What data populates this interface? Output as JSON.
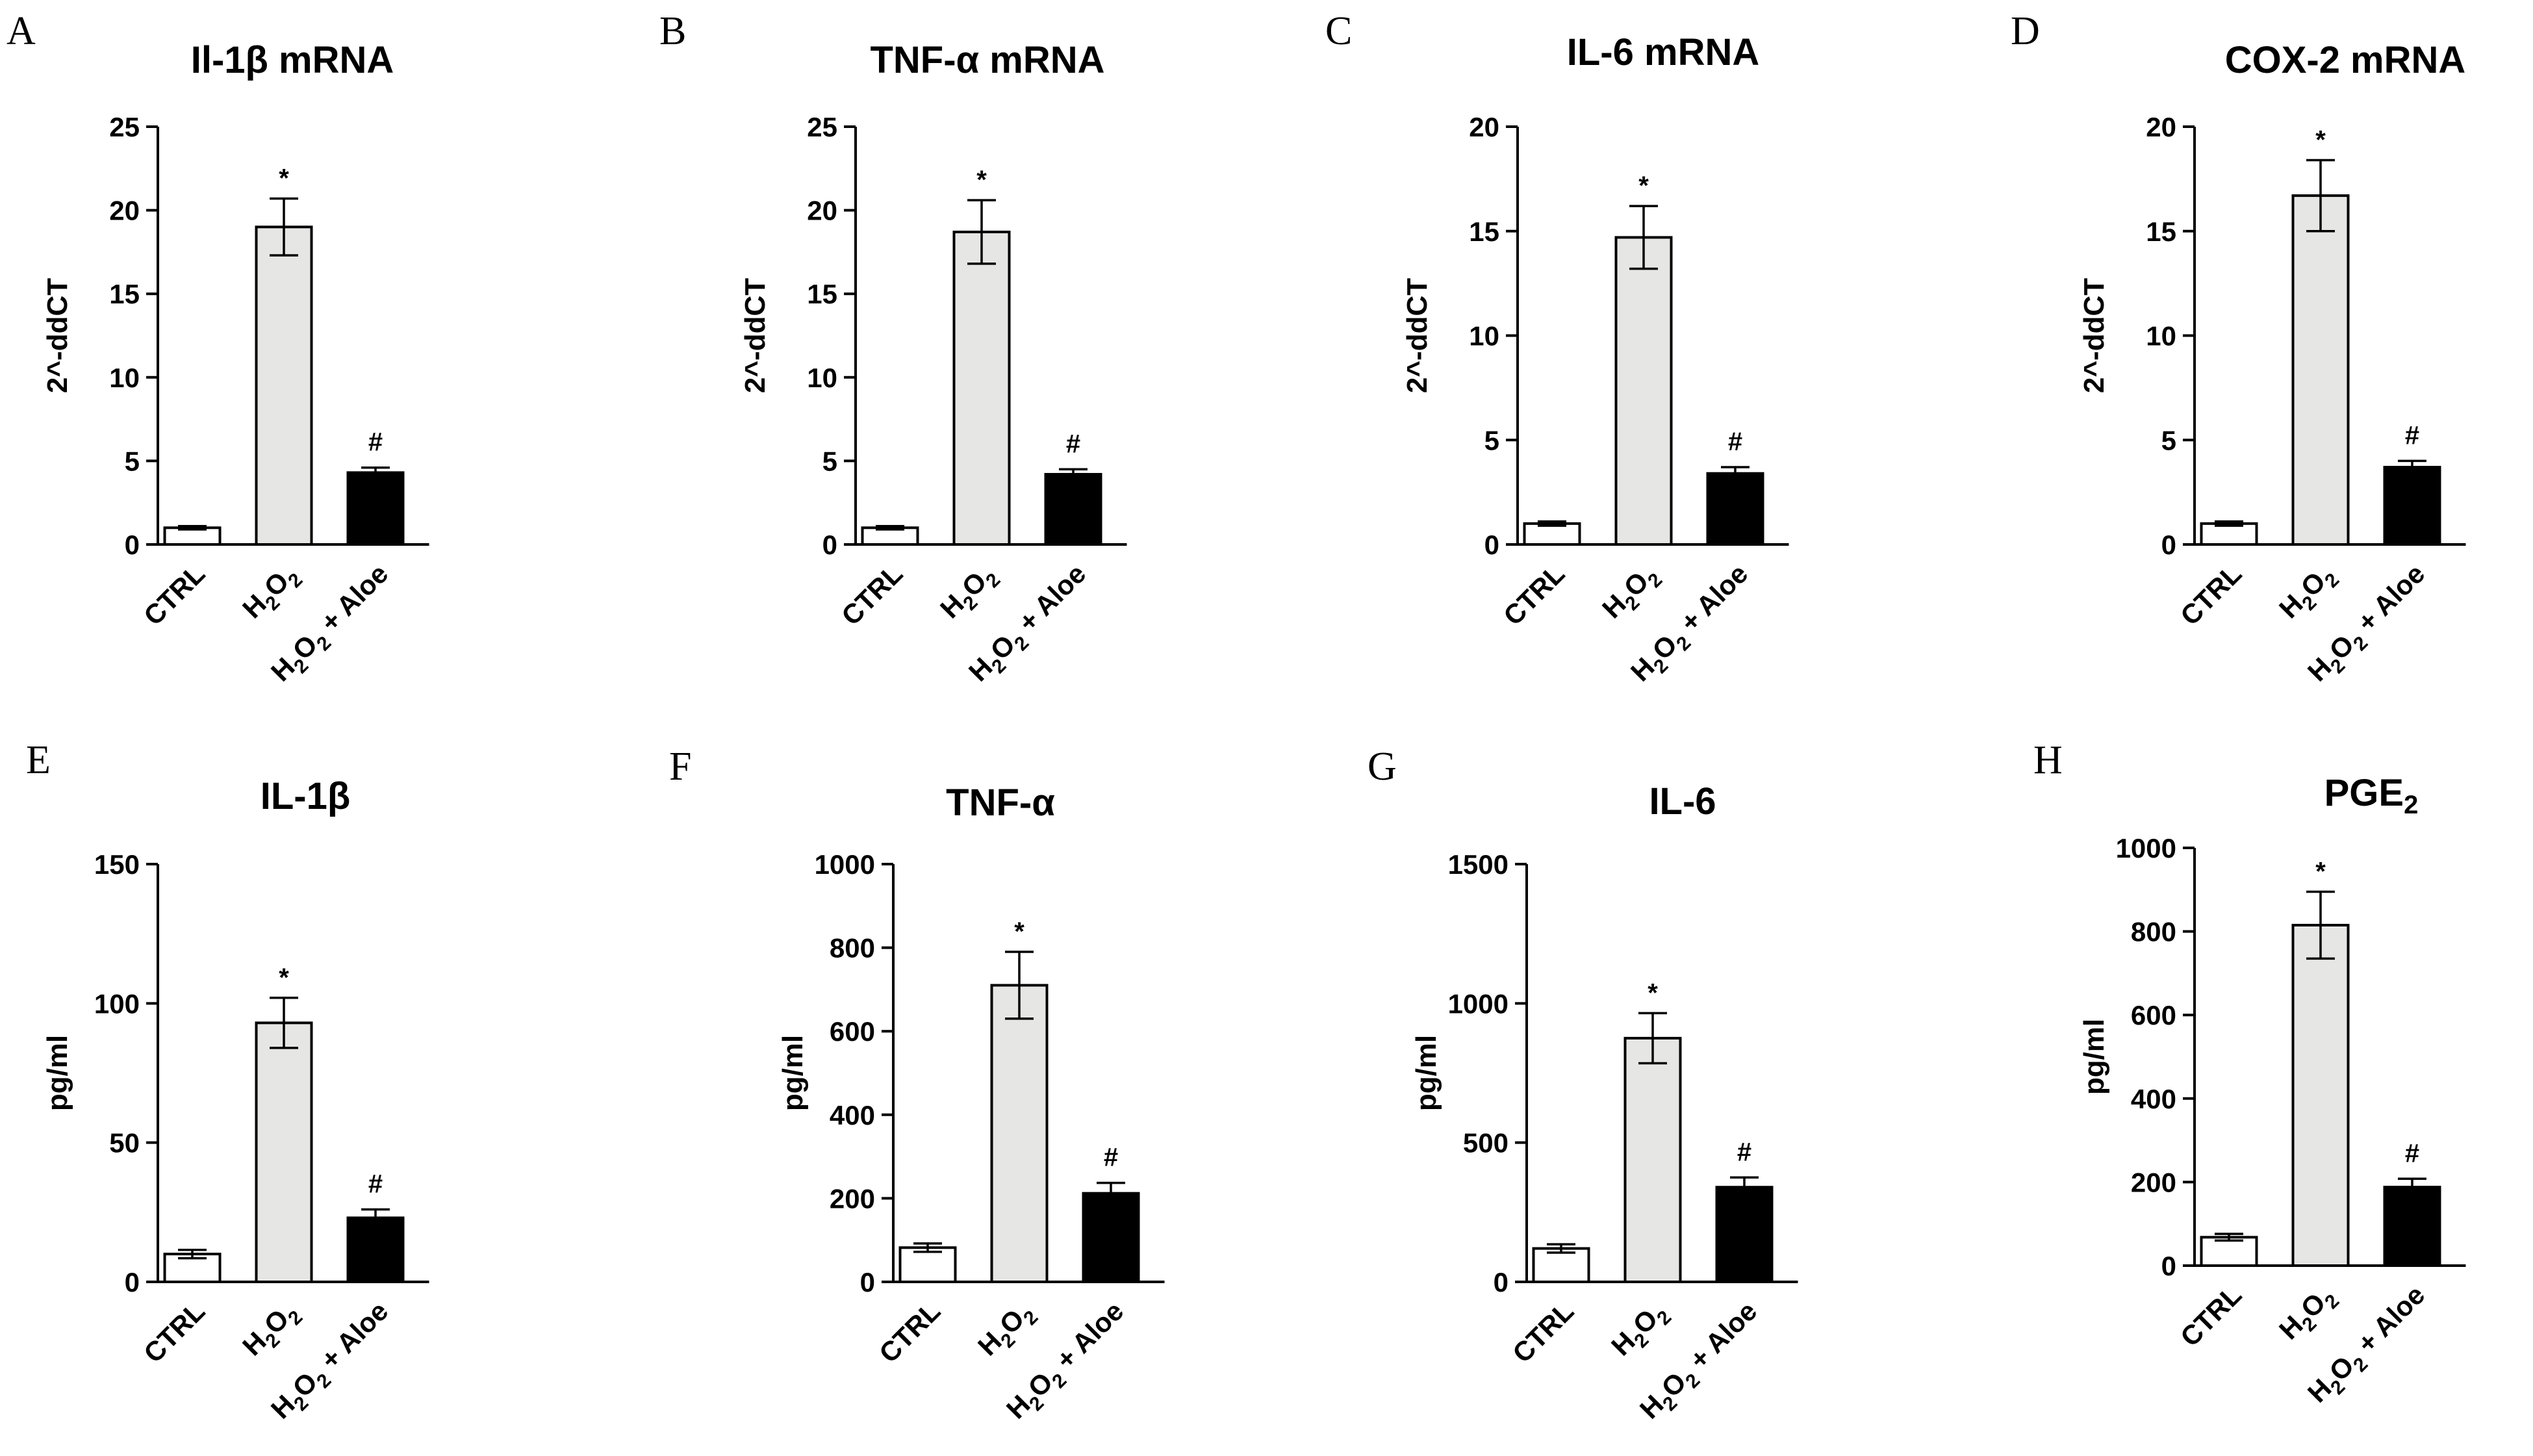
{
  "categories": [
    "CTRL",
    "H2O2",
    "H2O2 + Aloe"
  ],
  "bar_colors": [
    "#ffffff",
    "#e6e6e4",
    "#000000"
  ],
  "chart_data": [
    {
      "type": "bar",
      "letter": "A",
      "title": "Il-1β mRNA",
      "ylabel": "2^-ddCT",
      "ylim": [
        0,
        25
      ],
      "yticks": [
        0,
        5,
        10,
        15,
        20,
        25
      ],
      "categories": [
        "CTRL",
        "H2O2",
        "H2O2 + Aloe"
      ],
      "values": [
        1.0,
        19.0,
        4.3
      ],
      "errors": [
        0.1,
        1.7,
        0.3
      ],
      "annotations": [
        "",
        "*",
        "#"
      ]
    },
    {
      "type": "bar",
      "letter": "B",
      "title": "TNF-α mRNA",
      "ylabel": "2^-ddCT",
      "ylim": [
        0,
        25
      ],
      "yticks": [
        0,
        5,
        10,
        15,
        20,
        25
      ],
      "categories": [
        "CTRL",
        "H2O2",
        "H2O2 + Aloe"
      ],
      "values": [
        1.0,
        18.7,
        4.2
      ],
      "errors": [
        0.1,
        1.9,
        0.3
      ],
      "annotations": [
        "",
        "*",
        "#"
      ]
    },
    {
      "type": "bar",
      "letter": "C",
      "title": "IL-6 mRNA",
      "ylabel": "2^-ddCT",
      "ylim": [
        0,
        20
      ],
      "yticks": [
        0,
        5,
        10,
        15,
        20
      ],
      "categories": [
        "CTRL",
        "H2O2",
        "H2O2 + Aloe"
      ],
      "values": [
        1.0,
        14.7,
        3.4
      ],
      "errors": [
        0.1,
        1.5,
        0.3
      ],
      "annotations": [
        "",
        "*",
        "#"
      ]
    },
    {
      "type": "bar",
      "letter": "D",
      "title": "COX-2 mRNA",
      "ylabel": "2^-ddCT",
      "ylim": [
        0,
        20
      ],
      "yticks": [
        0,
        5,
        10,
        15,
        20
      ],
      "categories": [
        "CTRL",
        "H2O2",
        "H2O2 + Aloe"
      ],
      "values": [
        1.0,
        16.7,
        3.7
      ],
      "errors": [
        0.1,
        1.7,
        0.3
      ],
      "annotations": [
        "",
        "*",
        "#"
      ]
    },
    {
      "type": "bar",
      "letter": "E",
      "title": "IL-1β",
      "ylabel": "pg/ml",
      "ylim": [
        0,
        150
      ],
      "yticks": [
        0,
        50,
        100,
        150
      ],
      "categories": [
        "CTRL",
        "H2O2",
        "H2O2 + Aloe"
      ],
      "values": [
        10,
        93,
        23
      ],
      "errors": [
        1.5,
        9,
        3
      ],
      "annotations": [
        "",
        "*",
        "#"
      ]
    },
    {
      "type": "bar",
      "letter": "F",
      "title": "TNF-α",
      "ylabel": "pg/ml",
      "ylim": [
        0,
        1000
      ],
      "yticks": [
        0,
        200,
        400,
        600,
        800,
        1000
      ],
      "categories": [
        "CTRL",
        "H2O2",
        "H2O2 + Aloe"
      ],
      "values": [
        82,
        710,
        212
      ],
      "errors": [
        10,
        80,
        25
      ],
      "annotations": [
        "",
        "*",
        "#"
      ]
    },
    {
      "type": "bar",
      "letter": "G",
      "title": "IL-6",
      "ylabel": "pg/ml",
      "ylim": [
        0,
        1500
      ],
      "yticks": [
        0,
        500,
        1000,
        1500
      ],
      "categories": [
        "CTRL",
        "H2O2",
        "H2O2 + Aloe"
      ],
      "values": [
        120,
        875,
        340
      ],
      "errors": [
        15,
        90,
        35
      ],
      "annotations": [
        "",
        "*",
        "#"
      ]
    },
    {
      "type": "bar",
      "letter": "H",
      "title": "PGE2",
      "ylabel": "pg/ml",
      "ylim": [
        0,
        1000
      ],
      "yticks": [
        0,
        200,
        400,
        600,
        800,
        1000
      ],
      "categories": [
        "CTRL",
        "H2O2",
        "H2O2 + Aloe"
      ],
      "values": [
        68,
        815,
        188
      ],
      "errors": [
        8,
        80,
        20
      ],
      "annotations": [
        "",
        "*",
        "#"
      ]
    }
  ]
}
